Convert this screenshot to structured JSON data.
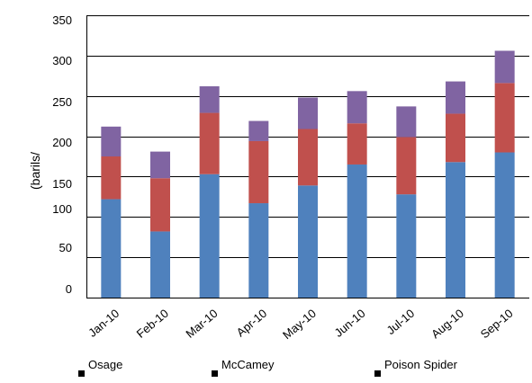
{
  "chart_data": {
    "type": "bar",
    "stacked": true,
    "title": "",
    "xlabel": "",
    "ylabel": "(barils/",
    "ylim": [
      0,
      350
    ],
    "ytick_labels": [
      "0",
      "50",
      "100",
      "150",
      "200",
      "250",
      "300",
      "350"
    ],
    "grid": true,
    "legend_position": "bottom",
    "categories": [
      "Jan-10",
      "Feb-10",
      "Mar-10",
      "Apr-10",
      "May-10",
      "Jun-10",
      "Jul-10",
      "Aug-10",
      "Sep-10"
    ],
    "series": [
      {
        "name": "Osage",
        "color": "#4f81bd",
        "values": [
          122,
          82,
          153,
          117,
          139,
          165,
          128,
          168,
          180
        ]
      },
      {
        "name": "McCamey",
        "color": "#c0504d",
        "values": [
          53,
          66,
          76,
          77,
          70,
          51,
          71,
          60,
          86
        ]
      },
      {
        "name": "Poison  Spider",
        "color": "#8064a2",
        "values": [
          37,
          33,
          33,
          25,
          39,
          40,
          38,
          40,
          40
        ]
      }
    ]
  }
}
